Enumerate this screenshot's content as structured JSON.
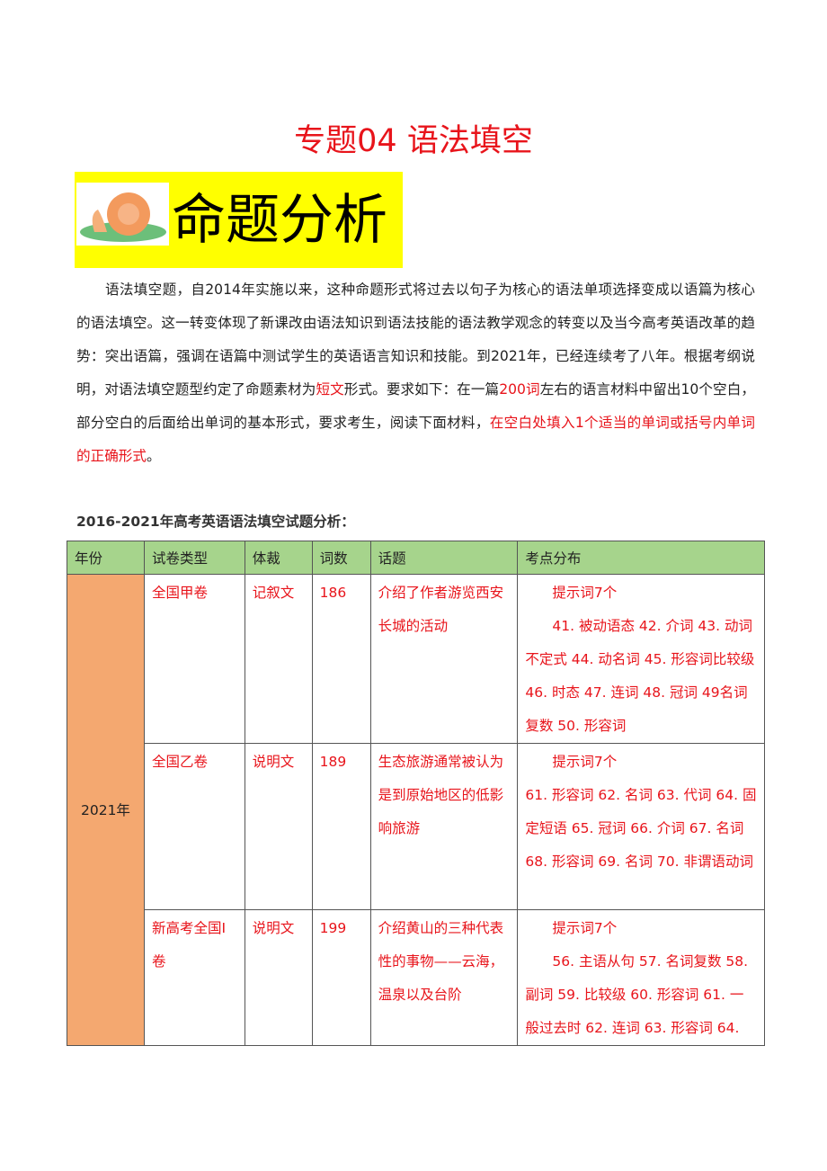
{
  "title": "专题04  语法填空",
  "banner": {
    "text": "命题分析",
    "icon": "snail-icon"
  },
  "intro": {
    "part1": "语法填空题，自2014年实施以来，这种命题形式将过去以句子为核心的语法单项选择变成以语篇为核心的语法填空。这一转变体现了新课改由语法知识到语法技能的语法教学观念的转变以及当今高考英语改革的趋势：突出语篇，强调在语篇中测试学生的英语语言知识和技能。到2021年，已经连续考了八年。根据考纲说明，对语法填空题型约定了命题素材为",
    "red1": "短文",
    "part2": "形式。要求如下：在一篇",
    "red2": "200词",
    "part3": "左右的语言材料中留出10个空白，部分空白的后面给出单词的基本形式，要求考生，阅读下面材料，",
    "red3": "在空白处填入1个适当的单词或括号内单词的正确形式",
    "end": "。"
  },
  "caption": "2016-2021年高考英语语法填空试题分析：",
  "colors": {
    "title": "#e8141b",
    "banner": "#ffff00",
    "header": "#a6d48c",
    "year": "#f4a870"
  },
  "table": {
    "headers": [
      "年份",
      "试卷类型",
      "体裁",
      "词数",
      "话题",
      "考点分布"
    ],
    "year": "2021年",
    "rows": [
      {
        "type": "全国甲卷",
        "genre": "记叙文",
        "words": "186",
        "topic": "介绍了作者游览西安长城的活动",
        "hint": "提示词7个",
        "points": "41. 被动语态 42. 介词 43. 动词不定式 44. 动名词 45. 形容词比较级 46. 时态 47. 连词 48. 冠词 49名词复数 50. 形容词"
      },
      {
        "type": "全国乙卷",
        "genre": "说明文",
        "words": "189",
        "topic": "生态旅游通常被认为是到原始地区的低影响旅游",
        "hint": "提示词7个",
        "points": "61. 形容词 62. 名词 63. 代词 64. 固定短语 65. 冠词 66. 介词 67. 名词 68. 形容词 69. 名词 70. 非谓语动词"
      },
      {
        "type": "新高考全国I卷",
        "genre": "说明文",
        "words": "199",
        "topic": "介绍黄山的三种代表性的事物——云海，温泉以及台阶",
        "hint": "提示词7个",
        "points": "56. 主语从句 57. 名词复数 58. 副词 59. 比较级 60. 形容词 61. 一般过去时 62. 连词 63. 形容词 64."
      }
    ]
  }
}
